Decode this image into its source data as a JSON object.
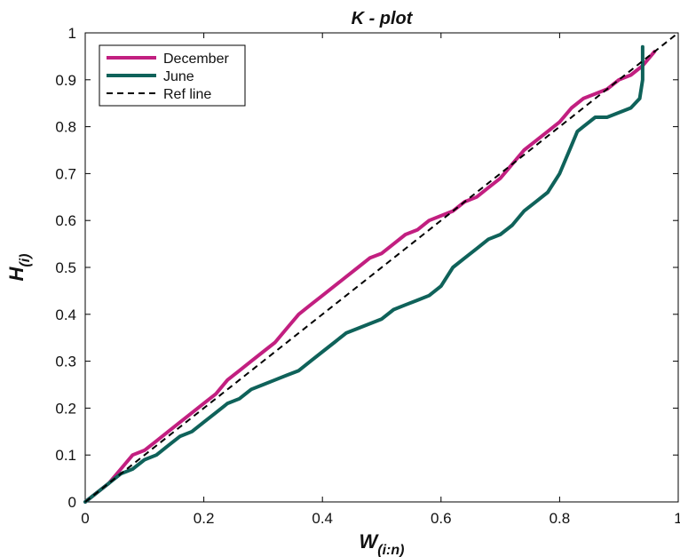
{
  "chart_data": {
    "type": "line",
    "title": "K - plot",
    "xlabel": {
      "main": "W",
      "sub": "(i:n)"
    },
    "ylabel": {
      "main": "H",
      "sub": "(i)"
    },
    "xlim": [
      0,
      1
    ],
    "ylim": [
      0,
      1
    ],
    "xticks": [
      0,
      0.2,
      0.4,
      0.6,
      0.8,
      1
    ],
    "xtick_labels": [
      "0",
      "0.2",
      "0.4",
      "0.6",
      "0.8",
      "1"
    ],
    "yticks": [
      0,
      0.1,
      0.2,
      0.3,
      0.4,
      0.5,
      0.6,
      0.7,
      0.8,
      0.9,
      1
    ],
    "ytick_labels": [
      "0",
      "0.1",
      "0.2",
      "0.3",
      "0.4",
      "0.5",
      "0.6",
      "0.7",
      "0.8",
      "0.9",
      "1"
    ],
    "grid": false,
    "legend_position": "top-left",
    "series": [
      {
        "name": "December",
        "color": "#c21f80",
        "style": "solid",
        "x": [
          0,
          0.02,
          0.04,
          0.06,
          0.08,
          0.1,
          0.12,
          0.14,
          0.16,
          0.18,
          0.2,
          0.22,
          0.24,
          0.26,
          0.28,
          0.3,
          0.32,
          0.34,
          0.36,
          0.38,
          0.4,
          0.42,
          0.44,
          0.46,
          0.48,
          0.5,
          0.52,
          0.54,
          0.56,
          0.58,
          0.6,
          0.62,
          0.64,
          0.66,
          0.68,
          0.7,
          0.72,
          0.74,
          0.76,
          0.78,
          0.8,
          0.82,
          0.84,
          0.86,
          0.88,
          0.9,
          0.92,
          0.94,
          0.96
        ],
        "y": [
          0,
          0.02,
          0.04,
          0.07,
          0.1,
          0.11,
          0.13,
          0.15,
          0.17,
          0.19,
          0.21,
          0.23,
          0.26,
          0.28,
          0.3,
          0.32,
          0.34,
          0.37,
          0.4,
          0.42,
          0.44,
          0.46,
          0.48,
          0.5,
          0.52,
          0.53,
          0.55,
          0.57,
          0.58,
          0.6,
          0.61,
          0.62,
          0.64,
          0.65,
          0.67,
          0.69,
          0.72,
          0.75,
          0.77,
          0.79,
          0.81,
          0.84,
          0.86,
          0.87,
          0.88,
          0.9,
          0.91,
          0.93,
          0.96
        ]
      },
      {
        "name": "June",
        "color": "#0f625a",
        "style": "solid",
        "x": [
          0,
          0.02,
          0.04,
          0.06,
          0.08,
          0.1,
          0.12,
          0.14,
          0.16,
          0.18,
          0.2,
          0.22,
          0.24,
          0.26,
          0.28,
          0.3,
          0.32,
          0.34,
          0.36,
          0.38,
          0.4,
          0.42,
          0.44,
          0.46,
          0.48,
          0.5,
          0.52,
          0.54,
          0.56,
          0.58,
          0.6,
          0.62,
          0.64,
          0.66,
          0.68,
          0.7,
          0.72,
          0.74,
          0.76,
          0.78,
          0.8,
          0.82,
          0.83,
          0.84,
          0.86,
          0.88,
          0.9,
          0.92,
          0.935,
          0.94,
          0.94
        ],
        "y": [
          0,
          0.02,
          0.04,
          0.06,
          0.07,
          0.09,
          0.1,
          0.12,
          0.14,
          0.15,
          0.17,
          0.19,
          0.21,
          0.22,
          0.24,
          0.25,
          0.26,
          0.27,
          0.28,
          0.3,
          0.32,
          0.34,
          0.36,
          0.37,
          0.38,
          0.39,
          0.41,
          0.42,
          0.43,
          0.44,
          0.46,
          0.5,
          0.52,
          0.54,
          0.56,
          0.57,
          0.59,
          0.62,
          0.64,
          0.66,
          0.7,
          0.76,
          0.79,
          0.8,
          0.82,
          0.82,
          0.83,
          0.84,
          0.86,
          0.9,
          0.97
        ]
      },
      {
        "name": "Ref line",
        "color": "#000000",
        "style": "dashed",
        "x": [
          0,
          1
        ],
        "y": [
          0,
          1
        ]
      }
    ]
  }
}
